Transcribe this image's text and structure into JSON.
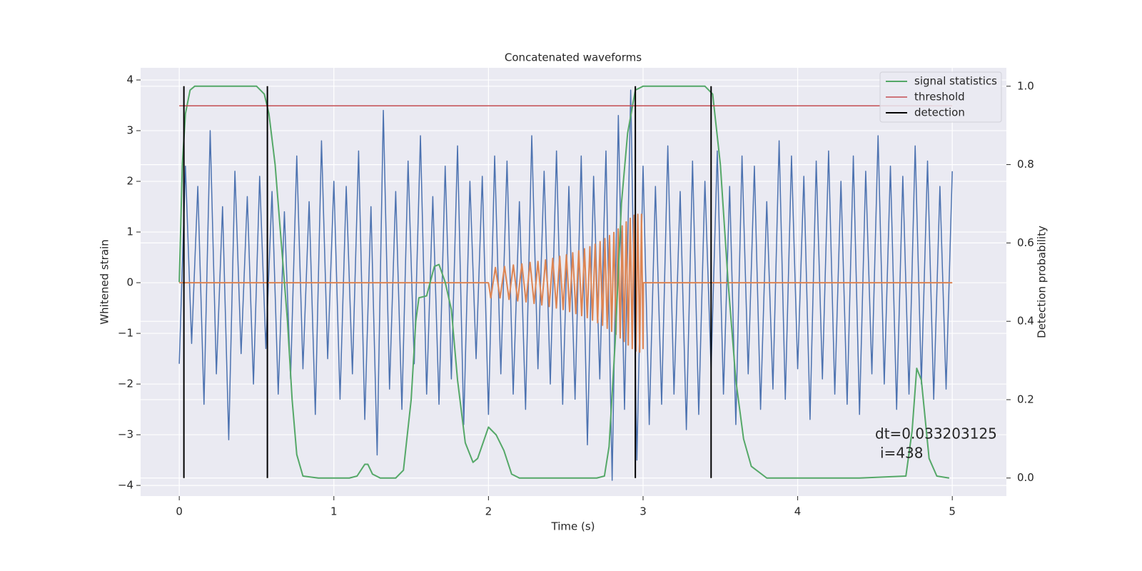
{
  "chart_data": {
    "type": "line",
    "title": "Concatenated waveforms",
    "xlabel": "Time (s)",
    "ylabel": "Whitened strain",
    "y2label": "Detection probability",
    "annotation": [
      "dt=0.033203125",
      "i=438"
    ],
    "grid": true,
    "legend": "upper right",
    "background": "#eaeaf2",
    "xlim": [
      -0.25,
      5.35
    ],
    "ylim": [
      -4.21,
      4.24
    ],
    "y2lim": [
      -0.046,
      1.047
    ],
    "xticks": [
      0,
      1,
      2,
      3,
      4,
      5
    ],
    "yticks": [
      {
        "value": -4,
        "label": "−4"
      },
      {
        "value": -3,
        "label": "−3"
      },
      {
        "value": -2,
        "label": "−2"
      },
      {
        "value": -1,
        "label": "−1"
      },
      0,
      1,
      2,
      3,
      4
    ],
    "y2ticks": [
      {
        "value": 0,
        "label": "0.0"
      },
      0.2,
      0.4,
      0.6,
      0.8,
      {
        "value": 1,
        "label": "1.0"
      }
    ],
    "series": [
      {
        "color": "#4c72b0",
        "width": 1.5,
        "x": [
          0,
          0.04,
          0.08,
          0.12,
          0.16,
          0.2,
          0.24,
          0.28,
          0.32,
          0.36,
          0.4,
          0.44,
          0.48,
          0.52,
          0.56,
          0.6,
          0.64,
          0.68,
          0.72,
          0.76,
          0.8,
          0.84,
          0.88,
          0.92,
          0.96,
          1,
          1.04,
          1.08,
          1.12,
          1.16,
          1.2,
          1.24,
          1.28,
          1.32,
          1.36,
          1.4,
          1.44,
          1.48,
          1.52,
          1.56,
          1.6,
          1.64,
          1.68,
          1.72,
          1.76,
          1.8,
          1.84,
          1.88,
          1.92,
          1.96,
          2,
          2.04,
          2.08,
          2.12,
          2.16,
          2.2,
          2.24,
          2.28,
          2.32,
          2.36,
          2.4,
          2.44,
          2.48,
          2.52,
          2.56,
          2.6,
          2.64,
          2.68,
          2.72,
          2.76,
          2.8,
          2.84,
          2.88,
          2.92,
          2.96,
          3,
          3.04,
          3.08,
          3.12,
          3.16,
          3.2,
          3.24,
          3.28,
          3.32,
          3.36,
          3.4,
          3.44,
          3.48,
          3.52,
          3.56,
          3.6,
          3.64,
          3.68,
          3.72,
          3.76,
          3.8,
          3.84,
          3.88,
          3.92,
          3.96,
          4,
          4.04,
          4.08,
          4.12,
          4.16,
          4.2,
          4.24,
          4.28,
          4.32,
          4.36,
          4.4,
          4.44,
          4.48,
          4.52,
          4.56,
          4.6,
          4.64,
          4.68,
          4.72,
          4.76,
          4.8,
          4.84,
          4.88,
          4.92,
          4.96,
          5
        ],
        "values": [
          -1.6,
          2.3,
          -1.2,
          1.9,
          -2.4,
          3.0,
          -1.8,
          1.5,
          -3.1,
          2.2,
          -1.4,
          1.7,
          -2.0,
          2.1,
          -1.3,
          1.8,
          -2.2,
          1.4,
          -1.9,
          2.5,
          -1.7,
          1.6,
          -2.6,
          2.8,
          -1.5,
          2.0,
          -2.3,
          1.9,
          -1.8,
          2.6,
          -2.7,
          1.5,
          -3.4,
          3.4,
          -2.1,
          1.8,
          -2.5,
          2.4,
          -1.6,
          2.9,
          -2.2,
          1.7,
          -2.4,
          2.3,
          -1.9,
          2.7,
          -2.8,
          2.0,
          -1.5,
          2.1,
          -2.6,
          2.5,
          -1.8,
          2.4,
          -2.2,
          1.6,
          -2.5,
          2.9,
          -1.7,
          2.2,
          -2.0,
          2.6,
          -2.4,
          1.9,
          -2.3,
          2.5,
          -3.2,
          2.1,
          -1.9,
          2.6,
          -3.9,
          3.3,
          -2.5,
          3.8,
          -3.5,
          2.3,
          -2.8,
          1.9,
          -2.4,
          2.7,
          -2.2,
          1.8,
          -2.9,
          2.4,
          -2.6,
          2.0,
          -1.7,
          2.6,
          -2.2,
          1.9,
          -2.8,
          2.5,
          -1.8,
          2.3,
          -2.5,
          1.6,
          -2.1,
          2.8,
          -2.3,
          2.5,
          -1.7,
          2.1,
          -2.7,
          2.4,
          -1.9,
          2.6,
          -2.2,
          2.0,
          -2.4,
          2.5,
          -2.6,
          2.2,
          -1.8,
          2.9,
          -2.0,
          2.3,
          -2.5,
          2.1,
          -2.2,
          2.7,
          -2.0,
          2.4,
          -2.3,
          1.9,
          -2.1,
          2.2
        ]
      },
      {
        "color": "#dd8452",
        "width": 2,
        "x": [
          0,
          2,
          2.015,
          2.045,
          2.075,
          2.104,
          2.133,
          2.161,
          2.189,
          2.216,
          2.243,
          2.269,
          2.295,
          2.32,
          2.345,
          2.369,
          2.393,
          2.416,
          2.439,
          2.461,
          2.483,
          2.504,
          2.525,
          2.545,
          2.565,
          2.584,
          2.603,
          2.621,
          2.639,
          2.656,
          2.673,
          2.69,
          2.706,
          2.722,
          2.738,
          2.753,
          2.768,
          2.783,
          2.797,
          2.811,
          2.825,
          2.839,
          2.852,
          2.865,
          2.878,
          2.891,
          2.904,
          2.917,
          2.93,
          2.942,
          2.954,
          2.966,
          2.978,
          2.99,
          3.0,
          3.002,
          5.0
        ],
        "values": [
          0,
          0,
          -0.3,
          0.3,
          -0.3,
          0.32,
          -0.33,
          0.35,
          -0.36,
          0.37,
          -0.38,
          0.4,
          -0.41,
          0.42,
          -0.44,
          0.45,
          -0.47,
          0.48,
          -0.5,
          0.52,
          -0.53,
          0.55,
          -0.57,
          0.59,
          -0.61,
          0.63,
          -0.65,
          0.67,
          -0.69,
          0.71,
          -0.74,
          0.76,
          -0.79,
          0.81,
          -0.84,
          0.87,
          -0.9,
          0.93,
          -0.96,
          0.99,
          -1.02,
          1.06,
          -1.09,
          1.12,
          -1.16,
          1.2,
          -1.23,
          1.27,
          -1.3,
          1.33,
          -1.35,
          1.35,
          -1.37,
          1.35,
          -1.3,
          0,
          0
        ]
      },
      {
        "name": "signal statistics",
        "color": "#55a868",
        "width": 2,
        "axis": "y2",
        "x": [
          0,
          0.02,
          0.04,
          0.07,
          0.1,
          0.5,
          0.55,
          0.58,
          0.62,
          0.66,
          0.7,
          0.73,
          0.76,
          0.8,
          0.9,
          1.1,
          1.15,
          1.2,
          1.22,
          1.25,
          1.3,
          1.4,
          1.45,
          1.5,
          1.53,
          1.55,
          1.6,
          1.65,
          1.68,
          1.72,
          1.76,
          1.8,
          1.85,
          1.9,
          1.93,
          2.0,
          2.05,
          2.1,
          2.15,
          2.2,
          2.7,
          2.75,
          2.78,
          2.82,
          2.86,
          2.9,
          2.95,
          3.0,
          3.4,
          3.45,
          3.5,
          3.55,
          3.6,
          3.65,
          3.7,
          3.8,
          4.4,
          4.7,
          4.74,
          4.77,
          4.8,
          4.85,
          4.9,
          4.98
        ],
        "values": [
          0.5,
          0.8,
          0.93,
          0.99,
          1.0,
          1.0,
          0.98,
          0.93,
          0.8,
          0.6,
          0.4,
          0.2,
          0.06,
          0.005,
          0,
          0,
          0.005,
          0.035,
          0.035,
          0.01,
          0,
          0,
          0.02,
          0.2,
          0.4,
          0.46,
          0.465,
          0.54,
          0.545,
          0.5,
          0.43,
          0.25,
          0.09,
          0.04,
          0.05,
          0.13,
          0.11,
          0.07,
          0.01,
          0,
          0,
          0.005,
          0.08,
          0.35,
          0.7,
          0.88,
          0.99,
          1.0,
          1.0,
          0.98,
          0.8,
          0.5,
          0.25,
          0.1,
          0.03,
          0,
          0,
          0.005,
          0.12,
          0.28,
          0.25,
          0.05,
          0.005,
          0
        ]
      },
      {
        "name": "threshold",
        "color": "#c44e52",
        "width": 1.5,
        "axis": "y2",
        "x": [
          0,
          5
        ],
        "values": [
          0.95,
          0.95
        ]
      },
      {
        "name": "detection",
        "color": "#000000",
        "width": 2,
        "axis": "y2",
        "x": [
          0.03,
          0.03,
          0.03,
          0.57,
          0.57,
          0.57,
          2.95,
          2.95,
          2.95,
          3.44,
          3.44,
          3.44
        ],
        "values": [
          0,
          1,
          null,
          0,
          1,
          null,
          0,
          1,
          null,
          0,
          1,
          null
        ]
      }
    ]
  }
}
